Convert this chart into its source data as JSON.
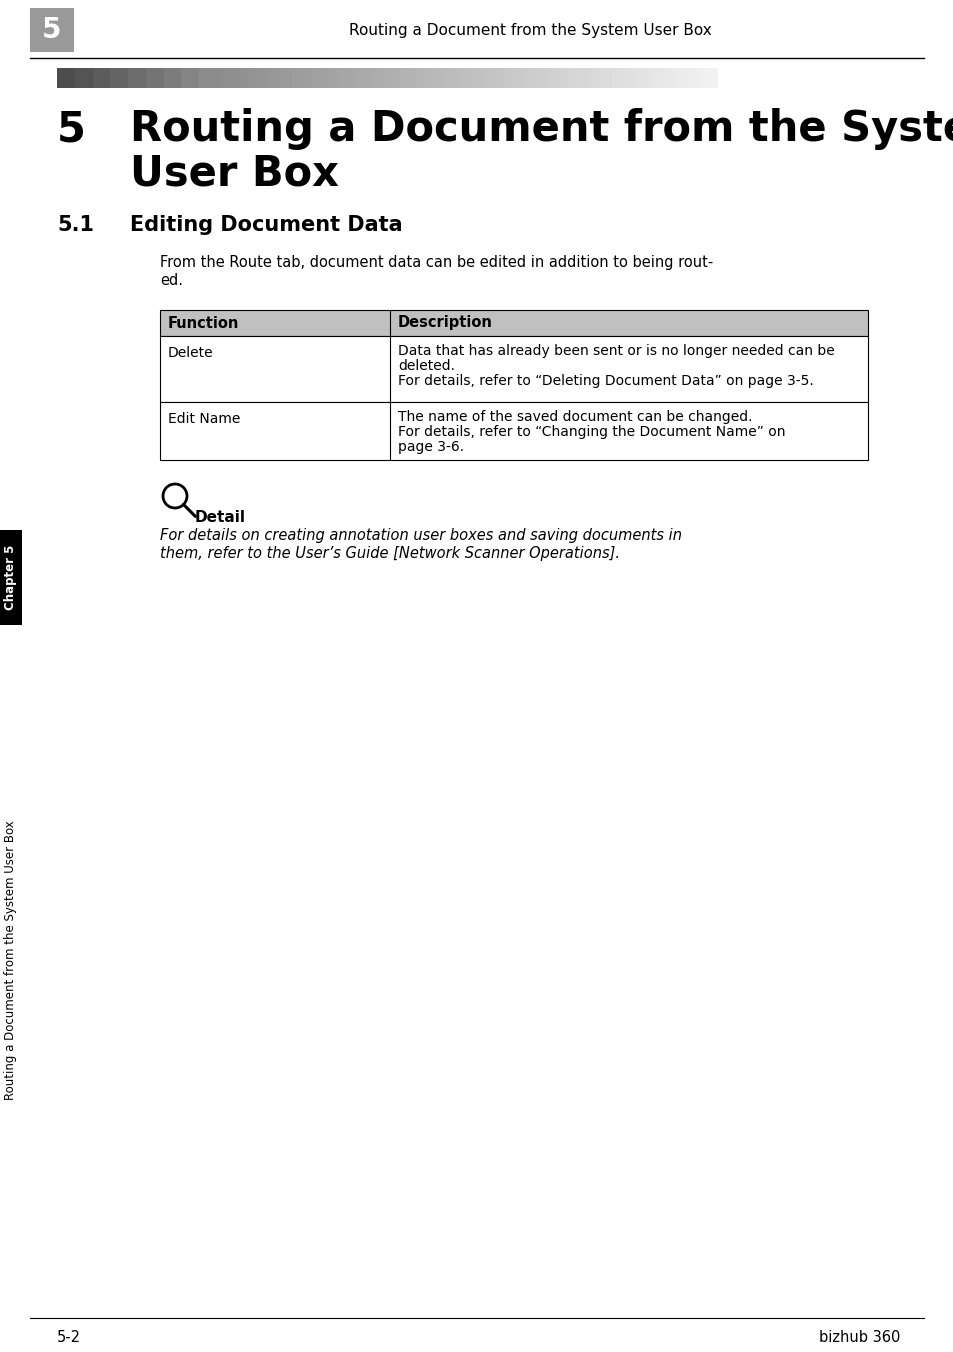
{
  "page_title_header": "Routing a Document from the System User Box",
  "chapter_number": "5",
  "section_number": "5.1",
  "section_title": "Editing Document Data",
  "intro_text_line1": "From the Route tab, document data can be edited in addition to being rout-",
  "intro_text_line2": "ed.",
  "table_header1": "Function",
  "table_header2": "Description",
  "row1_col1": "Delete",
  "row1_col2_line1": "Data that has already been sent or is no longer needed can be",
  "row1_col2_line2": "deleted.",
  "row1_col2_line3": "For details, refer to “Deleting Document Data” on page 3-5.",
  "row2_col1": "Edit Name",
  "row2_col2_line1": "The name of the saved document can be changed.",
  "row2_col2_line2": "For details, refer to “Changing the Document Name” on",
  "row2_col2_line3": "page 3-6.",
  "detail_label": "Detail",
  "detail_line1": "For details on creating annotation user boxes and saving documents in",
  "detail_line2": "them, refer to the User’s Guide [Network Scanner Operations].",
  "footer_left": "5-2",
  "footer_right": "bizhub 360",
  "sidebar_chapter": "Chapter 5",
  "sidebar_main": "Routing a Document from the System User Box",
  "bg_color": "#ffffff",
  "chapter_num_box_color": "#999999",
  "table_header_bg": "#c0c0c0",
  "sidebar_chapter_bg": "#000000",
  "sidebar_main_bg": "#ffffff",
  "sidebar_chapter_color": "#ffffff",
  "sidebar_main_color": "#000000"
}
